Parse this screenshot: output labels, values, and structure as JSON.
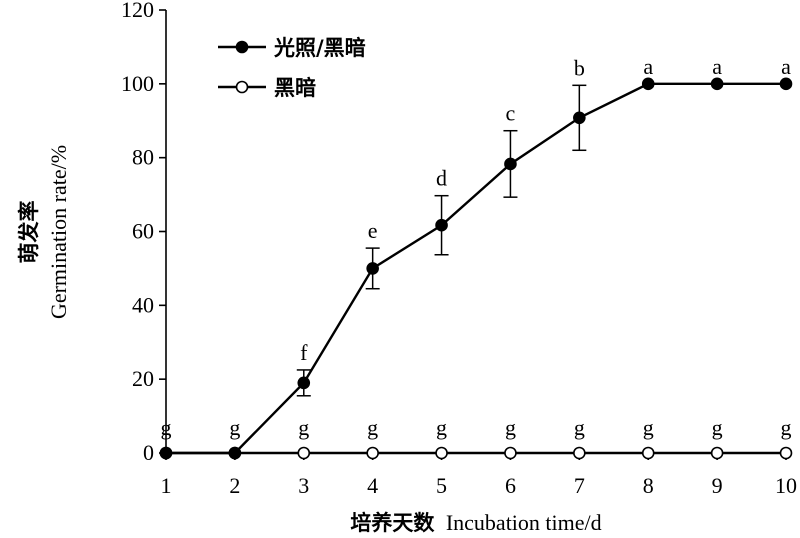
{
  "chart_data": {
    "type": "line",
    "title": "",
    "xlabel_cn": "培养天数",
    "xlabel_en": "Incubation time/d",
    "ylabel_cn": "萌发率",
    "ylabel_en": "Germination rate/%",
    "xlim": [
      1,
      10
    ],
    "ylim": [
      0,
      120
    ],
    "x_ticks": [
      1,
      2,
      3,
      4,
      5,
      6,
      7,
      8,
      9,
      10
    ],
    "y_ticks": [
      0,
      20,
      40,
      60,
      80,
      100,
      120
    ],
    "legend_position": "top-left",
    "grid": false,
    "x": [
      1,
      2,
      3,
      4,
      5,
      6,
      7,
      8,
      9,
      10
    ],
    "series": [
      {
        "name": "光照/黑暗",
        "marker": "filled-circle",
        "values": [
          0,
          0,
          19,
          50,
          61.7,
          78.3,
          90.8,
          100,
          100,
          100
        ],
        "errors": [
          0,
          0,
          3.5,
          5.5,
          8,
          9,
          8.8,
          0,
          0,
          0
        ],
        "labels": [
          "g",
          "g",
          "f",
          "e",
          "d",
          "c",
          "b",
          "a",
          "a",
          "a"
        ]
      },
      {
        "name": "黑暗",
        "marker": "open-circle",
        "values": [
          0,
          0,
          0,
          0,
          0,
          0,
          0,
          0,
          0,
          0
        ],
        "errors": [
          0,
          0,
          0,
          0,
          0,
          0,
          0,
          0,
          0,
          0
        ],
        "labels": [
          "g",
          "g",
          "g",
          "g",
          "g",
          "g",
          "g",
          "g",
          "g",
          "g"
        ]
      }
    ]
  }
}
